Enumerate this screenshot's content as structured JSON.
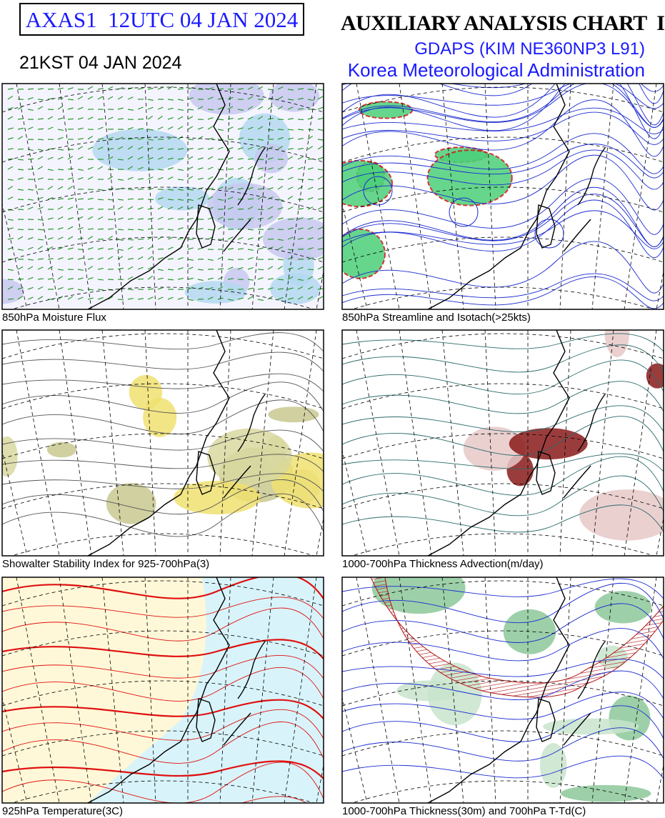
{
  "header": {
    "product_id": "AXAS1  12UTC 04 JAN 2024",
    "local_time": "21KST 04 JAN 2024",
    "title": "AUXILIARY ANALYSIS CHART  I",
    "model": "GDAPS (KIM NE360NP3 L91)",
    "agency": "Korea Meteorological Administration"
  },
  "panels": [
    {
      "caption": "850hPa Moisture Flux"
    },
    {
      "caption": "850hPa Streamline and Isotach(>25kts)"
    },
    {
      "caption": "Showalter Stability Index for 925-700hPa(3)"
    },
    {
      "caption": "1000-700hPa Thickness Advection(m/day)"
    },
    {
      "caption": "925hPa Temperature(3C)"
    },
    {
      "caption": "1000-700hPa Thickness(30m) and 700hPa T-Td(C)"
    }
  ]
}
